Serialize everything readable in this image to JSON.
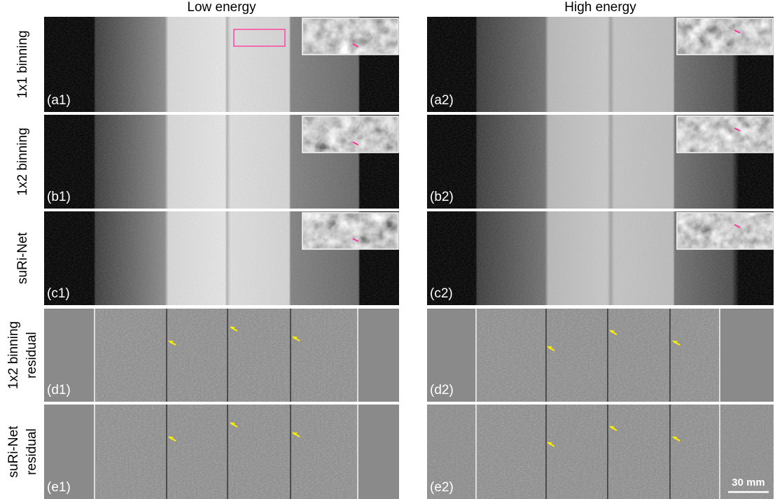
{
  "columns": [
    "Low energy",
    "High energy"
  ],
  "rows": [
    {
      "label": [
        "1x1 binning"
      ],
      "panels": [
        "(a1)",
        "(a2)"
      ]
    },
    {
      "label": [
        "1x2 binning"
      ],
      "panels": [
        "(b1)",
        "(b2)"
      ]
    },
    {
      "label": [
        "suRi-Net"
      ],
      "panels": [
        "(c1)",
        "(c2)"
      ]
    },
    {
      "label": [
        "1x2 binning",
        "residual"
      ],
      "panels": [
        "(d1)",
        "(d2)"
      ]
    },
    {
      "label": [
        "suRi-Net",
        "residual"
      ],
      "panels": [
        "(e1)",
        "(e2)"
      ]
    }
  ],
  "scale_bar": "30 mm"
}
